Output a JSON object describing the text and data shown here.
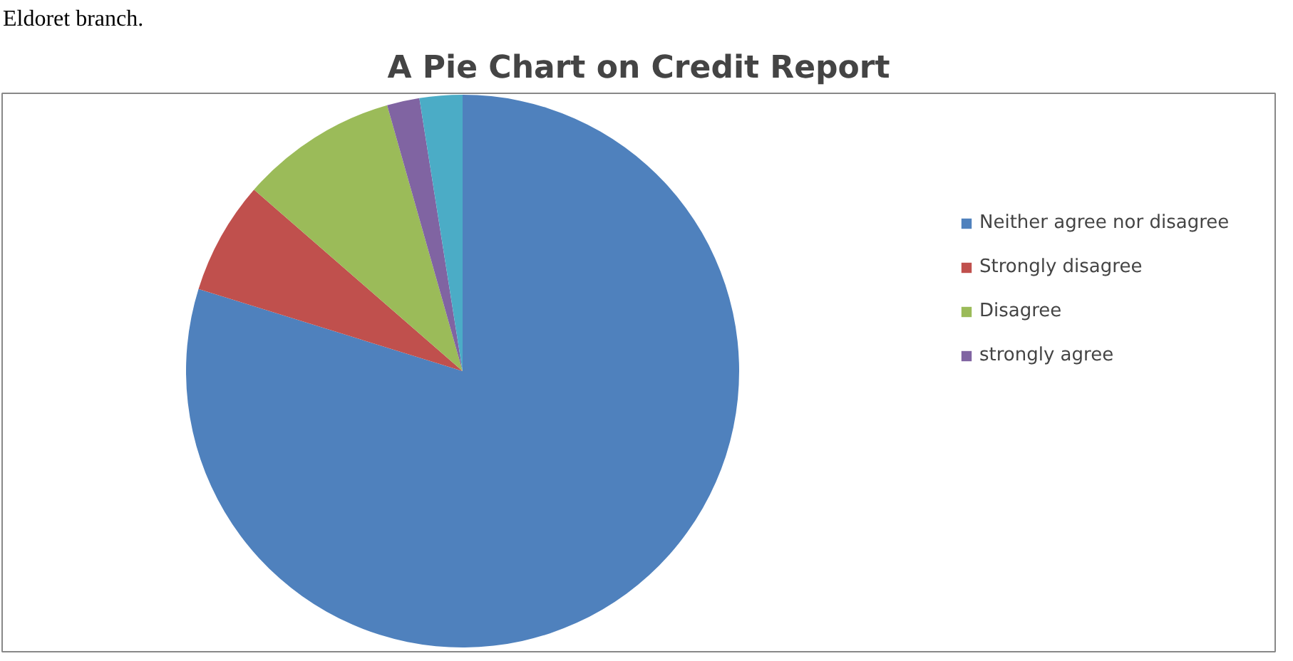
{
  "chart_data": {
    "type": "pie",
    "title": "A Pie Chart on Credit Report",
    "categories": [
      "Neither agree nor disagree",
      "Strongly disagree",
      "Disagree",
      "strongly agree",
      null
    ],
    "values": [
      79.8,
      6.6,
      9.2,
      1.9,
      2.5
    ],
    "colors": [
      "#4f81bd",
      "#c0504d",
      "#9bbb59",
      "#8064a2",
      "#4bacc6"
    ],
    "legend": "right",
    "annotations": [
      "Eldoret branch."
    ]
  }
}
